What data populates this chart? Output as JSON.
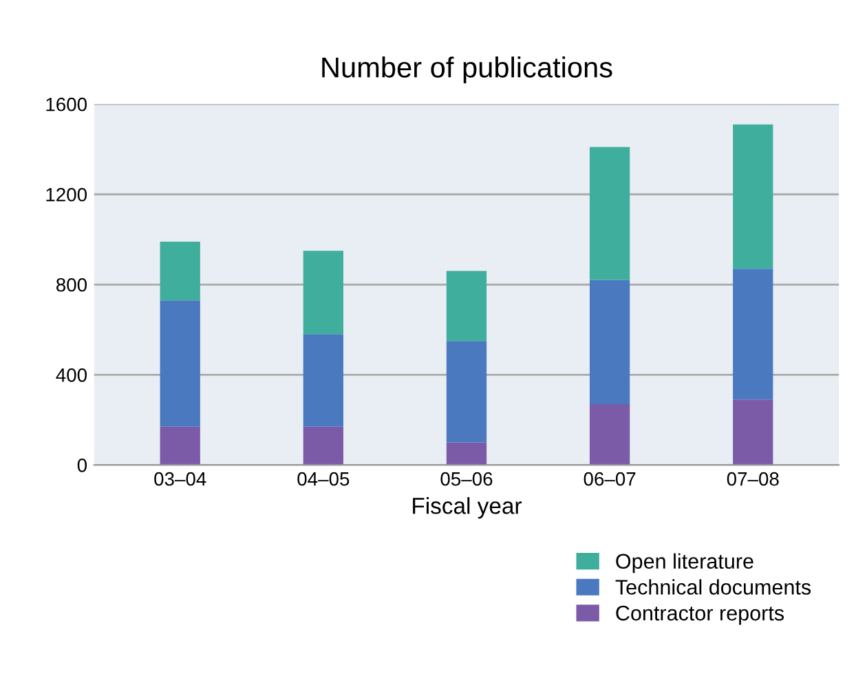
{
  "chart_data": {
    "type": "bar",
    "title": "Number of publications",
    "xlabel": "Fiscal year",
    "categories": [
      "03–04",
      "04–05",
      "05–06",
      "06–07",
      "07–08"
    ],
    "stacked": true,
    "series": [
      {
        "name": "Contractor reports",
        "color": "#7b5ba8",
        "values": [
          170,
          170,
          100,
          270,
          290
        ]
      },
      {
        "name": "Technical documents",
        "color": "#4b79c0",
        "values": [
          560,
          410,
          450,
          550,
          580
        ]
      },
      {
        "name": "Open literature",
        "color": "#40ae9c",
        "values": [
          260,
          370,
          310,
          590,
          640
        ]
      }
    ],
    "ylim": [
      0,
      1600
    ],
    "yticks": [
      0,
      400,
      800,
      1200,
      1600
    ],
    "grid": "y",
    "legend": "bottom right"
  }
}
